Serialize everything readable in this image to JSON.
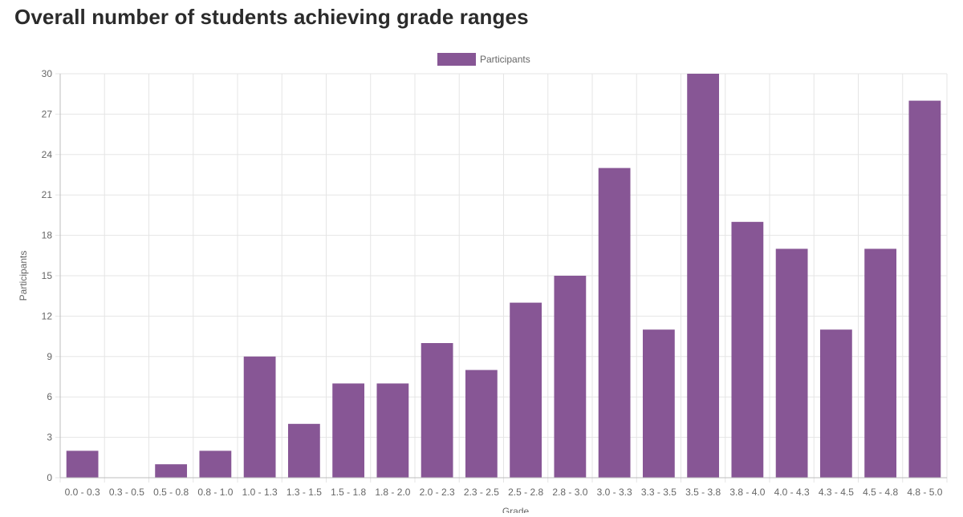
{
  "page": {
    "title": "Overall number of students achieving grade ranges"
  },
  "chart_data": {
    "type": "bar",
    "title": "Overall number of students achieving grade ranges",
    "xlabel": "Grade",
    "ylabel": "Participants",
    "ylim": [
      0,
      30
    ],
    "yticks": [
      0,
      3,
      6,
      9,
      12,
      15,
      18,
      21,
      24,
      27,
      30
    ],
    "grid": true,
    "legend_position": "top-center",
    "categories": [
      "0.0 - 0.3",
      "0.3 - 0.5",
      "0.5 - 0.8",
      "0.8 - 1.0",
      "1.0 - 1.3",
      "1.3 - 1.5",
      "1.5 - 1.8",
      "1.8 - 2.0",
      "2.0 - 2.3",
      "2.3 - 2.5",
      "2.5 - 2.8",
      "2.8 - 3.0",
      "3.0 - 3.3",
      "3.3 - 3.5",
      "3.5 - 3.8",
      "3.8 - 4.0",
      "4.0 - 4.3",
      "4.3 - 4.5",
      "4.5 - 4.8",
      "4.8 - 5.0"
    ],
    "series": [
      {
        "name": "Participants",
        "color": "#875695",
        "values": [
          2,
          0,
          1,
          2,
          9,
          4,
          7,
          7,
          10,
          8,
          13,
          15,
          23,
          11,
          30,
          19,
          17,
          11,
          17,
          28
        ]
      }
    ]
  }
}
